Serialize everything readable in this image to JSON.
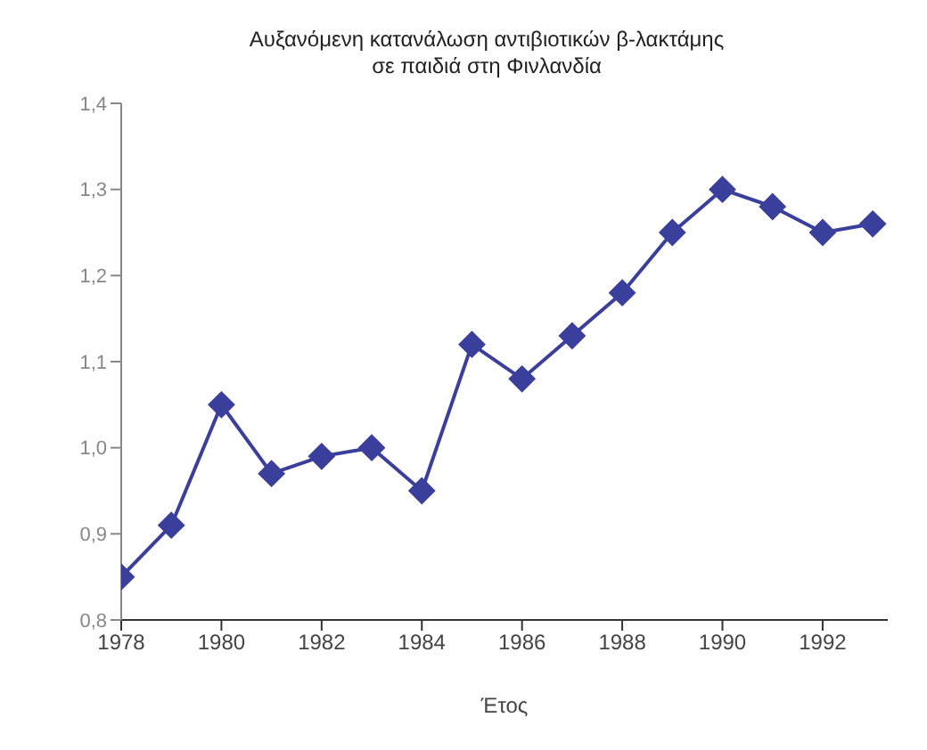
{
  "chart_data": {
    "type": "line",
    "title": "Αυξανόμενη κατανάλωση αντιβιοτικών β-λακτάμης\nσε παιδιά στη Φινλανδία",
    "xlabel": "Έτος",
    "x": [
      1978,
      1979,
      1980,
      1981,
      1982,
      1983,
      1984,
      1985,
      1986,
      1987,
      1988,
      1989,
      1990,
      1991,
      1992,
      1993
    ],
    "series": [
      {
        "color": "#3b3f9c",
        "values": [
          0.85,
          0.91,
          1.05,
          0.97,
          0.99,
          1.0,
          0.95,
          1.12,
          1.08,
          1.13,
          1.18,
          1.25,
          1.3,
          1.28,
          1.25,
          1.26
        ]
      }
    ],
    "xlim": [
      1978,
      1993.3
    ],
    "xticks": [
      1978,
      1980,
      1982,
      1984,
      1986,
      1988,
      1990,
      1992
    ],
    "ylim": [
      0.8,
      1.4
    ],
    "yticks": [
      {
        "value": 0.8,
        "label": "0,8"
      },
      {
        "value": 0.9,
        "label": "0,9"
      },
      {
        "value": 1.0,
        "label": "1,0"
      },
      {
        "value": 1.1,
        "label": "1,1"
      },
      {
        "value": 1.2,
        "label": "1,2"
      },
      {
        "value": 1.3,
        "label": "1,3"
      },
      {
        "value": 1.4,
        "label": "1,4"
      }
    ],
    "marker": "diamond",
    "grid": false
  }
}
